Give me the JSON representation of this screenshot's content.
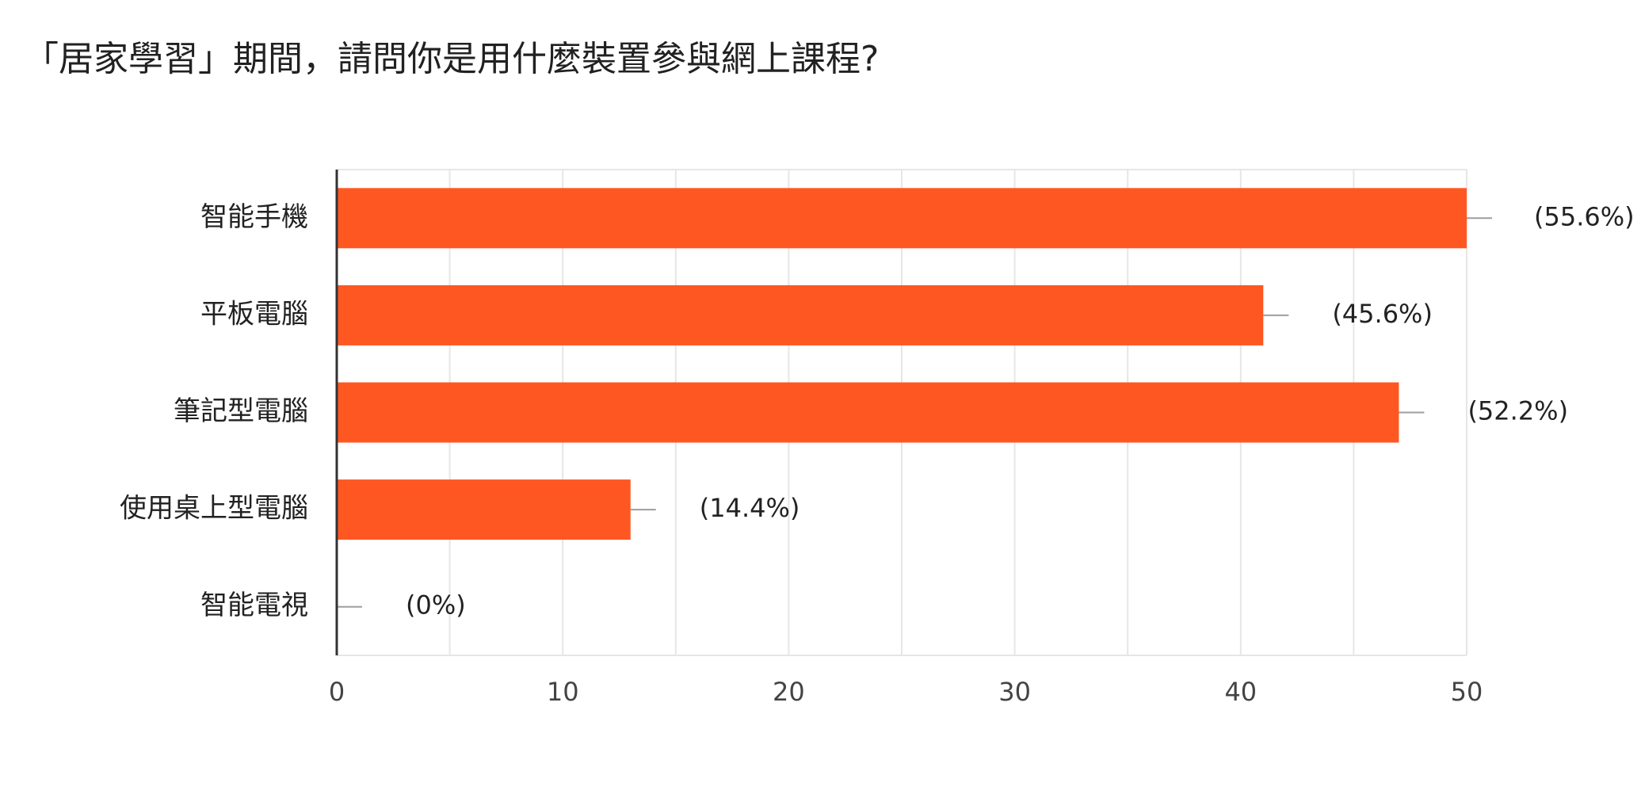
{
  "chart_data": {
    "type": "bar",
    "orientation": "horizontal",
    "title": "「居家學習」期間，請問你是用什麼裝置參與網上課程?",
    "categories": [
      "智能手機",
      "平板電腦",
      "筆記型電腦",
      "使用桌上型電腦",
      "智能電視"
    ],
    "values": [
      50,
      41,
      47,
      13,
      0
    ],
    "data_labels": [
      "(55.6%)",
      "(45.6%)",
      "(52.2%)",
      "(14.4%)",
      "(0%)"
    ],
    "xlim": [
      0,
      50
    ],
    "xticks": [
      "0",
      "10",
      "20",
      "30",
      "40",
      "50"
    ],
    "grid": true,
    "legend": "none",
    "bar_color": "#ff5722",
    "axis_color": "#333333",
    "grid_color": "#e6e6e6",
    "leader_color": "#9e9e9e"
  }
}
